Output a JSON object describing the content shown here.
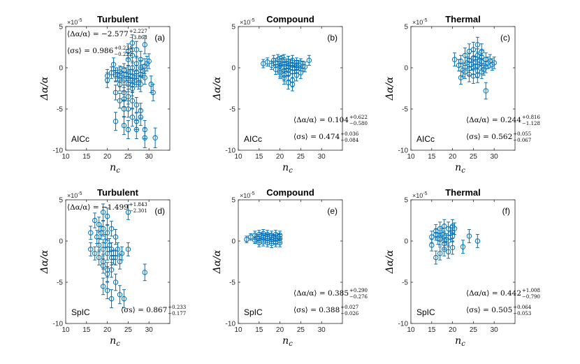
{
  "figure": {
    "exponent_label": "×10",
    "exponent_power": "-5",
    "xlabel": "n_c",
    "ylabel": "Δα/α",
    "marker_color": "#0072BD"
  },
  "chart_data": [
    {
      "type": "scatter",
      "id": "a",
      "title": "Turbulent",
      "panel_label": "(a)",
      "method": "AICc",
      "xlabel": "n_c",
      "ylabel": "Δα/α",
      "xlim": [
        10,
        35
      ],
      "ylim": [
        -10,
        5
      ],
      "xticks": [
        10,
        15,
        20,
        25,
        30
      ],
      "yticks": [
        5,
        0,
        -5,
        -10
      ],
      "ytick_scale": "×10^-5",
      "stats": [
        {
          "name": "⟨Δα/α⟩",
          "value": "−2.577",
          "plus": "+2.227",
          "minus": "−3.863",
          "position": "top"
        },
        {
          "name": "⟨σs⟩",
          "value": "0.986",
          "plus": "+0.234",
          "minus": "−0.222",
          "position": "top"
        }
      ],
      "x": [
        20,
        20,
        21,
        21.5,
        22,
        22,
        22,
        22.5,
        23,
        23,
        23,
        23,
        23.5,
        24,
        24,
        24,
        24,
        24,
        24.5,
        25,
        25,
        25,
        25,
        25,
        25,
        25,
        25.5,
        26,
        26,
        26,
        26,
        26,
        26,
        26,
        26.5,
        27,
        27,
        27,
        27,
        27,
        27,
        27,
        27.5,
        28,
        28,
        28,
        28,
        28,
        28.5,
        29,
        29,
        29,
        29,
        29.5,
        30,
        30.5,
        31,
        31.5,
        22,
        24,
        25,
        26,
        28,
        29
      ],
      "y": [
        -1,
        -1.5,
        -0.6,
        0.4,
        -1,
        -3,
        -6.5,
        -0.8,
        -0.5,
        -2,
        -4,
        -1.5,
        -0.7,
        -0.3,
        -1.5,
        -3,
        -5,
        -7,
        -0.8,
        2,
        1,
        -0.5,
        -2,
        -3.5,
        -5,
        -7.5,
        -1,
        3,
        1.5,
        0,
        -1,
        -2.5,
        -4,
        -6,
        -1.2,
        2.2,
        0.5,
        -0.5,
        -1.5,
        -4.5,
        -6.5,
        -7.5,
        -1.8,
        1,
        0,
        -0.8,
        -2,
        -6,
        -0.4,
        2.8,
        0.2,
        -7.5,
        -8.5,
        0.5,
        0.8,
        -2,
        -3,
        -8.5,
        -0.8,
        -3.8,
        -1.3,
        -2.1,
        -5.2,
        -1.2
      ],
      "yerr": [
        0.8,
        0.9,
        0.7,
        0.8,
        0.7,
        0.9,
        1.1,
        0.8,
        0.7,
        0.8,
        0.9,
        0.8,
        0.8,
        0.8,
        0.9,
        0.9,
        1.0,
        1.1,
        0.8,
        0.9,
        0.8,
        0.8,
        0.9,
        0.9,
        1.0,
        1.1,
        0.8,
        1.0,
        0.9,
        0.8,
        0.8,
        0.9,
        1.0,
        1.1,
        0.8,
        1.0,
        0.9,
        0.8,
        0.8,
        0.9,
        1.0,
        1.1,
        0.8,
        1.0,
        0.9,
        0.8,
        0.9,
        1.0,
        0.8,
        1.1,
        0.9,
        1.1,
        1.2,
        0.9,
        0.9,
        1.0,
        1.0,
        1.2,
        0.8,
        0.9,
        0.8,
        0.8,
        0.9,
        0.8
      ]
    },
    {
      "type": "scatter",
      "id": "b",
      "title": "Compound",
      "panel_label": "(b)",
      "method": "AICc",
      "xlabel": "n_c",
      "ylabel": "Δα/α",
      "xlim": [
        10,
        35
      ],
      "ylim": [
        -10,
        5
      ],
      "xticks": [
        10,
        15,
        20,
        25,
        30
      ],
      "yticks": [
        5,
        0,
        -5,
        -10
      ],
      "ytick_scale": "×10^-5",
      "stats": [
        {
          "name": "⟨Δα/α⟩",
          "value": "0.104",
          "plus": "+0.622",
          "minus": "−0.580",
          "position": "bottom"
        },
        {
          "name": "⟨σs⟩",
          "value": "0.474",
          "plus": "+0.036",
          "minus": "−0.084",
          "position": "bottom"
        }
      ],
      "x": [
        16,
        17,
        18,
        18.5,
        19,
        19,
        19.5,
        20,
        20,
        20,
        20.5,
        21,
        21,
        21,
        21,
        21.5,
        22,
        22,
        22,
        22,
        22.5,
        23,
        23,
        23,
        23,
        23.5,
        24,
        24,
        24,
        24.5,
        25,
        25,
        25.5,
        26,
        27,
        20,
        21,
        22,
        23,
        24
      ],
      "y": [
        0.5,
        0.7,
        0.3,
        0.9,
        0.6,
        -0.2,
        1,
        0.8,
        0.2,
        -0.6,
        0.9,
        1,
        0.4,
        -0.3,
        -1.2,
        0.1,
        0.8,
        0.2,
        -0.8,
        -1.8,
        0.4,
        0.9,
        0.3,
        -0.5,
        -1.5,
        -0.1,
        0.6,
        0,
        -0.9,
        0.3,
        0.5,
        -0.6,
        0.2,
        0.1,
        0.9,
        -0.4,
        -0.9,
        -0.3,
        -2,
        0.3
      ],
      "yerr": [
        0.5,
        0.5,
        0.5,
        0.6,
        0.5,
        0.6,
        0.6,
        0.6,
        0.6,
        0.7,
        0.6,
        0.6,
        0.6,
        0.7,
        0.8,
        0.6,
        0.6,
        0.6,
        0.7,
        0.8,
        0.6,
        0.6,
        0.6,
        0.7,
        0.8,
        0.6,
        0.6,
        0.6,
        0.7,
        0.6,
        0.6,
        0.7,
        0.6,
        0.6,
        0.6,
        0.7,
        0.7,
        0.6,
        0.8,
        0.6
      ]
    },
    {
      "type": "scatter",
      "id": "c",
      "title": "Thermal",
      "panel_label": "(c)",
      "method": "AICc",
      "xlabel": "n_c",
      "ylabel": "Δα/α",
      "xlim": [
        10,
        35
      ],
      "ylim": [
        -10,
        5
      ],
      "xticks": [
        10,
        15,
        20,
        25,
        30
      ],
      "yticks": [
        5,
        0,
        -5,
        -10
      ],
      "ytick_scale": "×10^-5",
      "stats": [
        {
          "name": "⟨Δα/α⟩",
          "value": "0.244",
          "plus": "+0.816",
          "minus": "−1.128",
          "position": "bottom"
        },
        {
          "name": "⟨σs⟩",
          "value": "0.562",
          "plus": "+0.055",
          "minus": "−0.067",
          "position": "bottom"
        }
      ],
      "x": [
        20.5,
        21.5,
        22,
        22.5,
        23,
        23,
        23.5,
        24,
        24,
        24,
        24.5,
        25,
        25,
        25,
        25,
        25.5,
        26,
        26,
        26,
        26,
        26.5,
        27,
        27,
        27,
        27.5,
        28,
        28,
        28,
        28.5,
        29,
        29.5,
        30,
        22,
        24,
        26,
        27
      ],
      "y": [
        1,
        0.3,
        0.8,
        -0.3,
        1.5,
        -0.5,
        0.6,
        2,
        0.9,
        -0.8,
        0.4,
        2.2,
        1.2,
        0,
        -1,
        0.7,
        2.8,
        1.5,
        0.2,
        -0.9,
        0.9,
        2,
        0.7,
        -0.5,
        -0.2,
        1,
        0.1,
        -2.8,
        0.6,
        0.8,
        0.4,
        0.6,
        -1.2,
        -0.1,
        -0.4,
        1.3
      ],
      "yerr": [
        0.8,
        0.7,
        0.7,
        0.8,
        0.9,
        0.8,
        0.7,
        0.9,
        0.8,
        0.9,
        0.7,
        0.9,
        0.8,
        0.8,
        0.9,
        0.7,
        0.9,
        0.8,
        0.8,
        0.9,
        0.7,
        0.9,
        0.8,
        0.8,
        0.7,
        0.8,
        0.7,
        1.0,
        0.7,
        0.8,
        0.7,
        0.7,
        0.8,
        0.8,
        0.8,
        0.8
      ]
    },
    {
      "type": "scatter",
      "id": "d",
      "title": "Turbulent",
      "panel_label": "(d)",
      "method": "SpIC",
      "xlabel": "n_c",
      "ylabel": "Δα/α",
      "xlim": [
        10,
        35
      ],
      "ylim": [
        -10,
        5
      ],
      "xticks": [
        10,
        15,
        20,
        25,
        30
      ],
      "yticks": [
        5,
        0,
        -5,
        -10
      ],
      "ytick_scale": "×10^-5",
      "stats": [
        {
          "name": "⟨Δα/α⟩",
          "value": "−1.499",
          "plus": "+1.843",
          "minus": "−2.301",
          "position": "top"
        },
        {
          "name": "⟨σs⟩",
          "value": "0.867",
          "plus": "+0.233",
          "minus": "−0.177",
          "position": "bottom"
        }
      ],
      "x": [
        16,
        16,
        17,
        17,
        17.5,
        18,
        18,
        18,
        18.5,
        19,
        19,
        19,
        19,
        19,
        19.5,
        20,
        20,
        20,
        20,
        20,
        20.5,
        21,
        21,
        21,
        21,
        21.5,
        22,
        22,
        22,
        22.5,
        23,
        23,
        23.5,
        24,
        25,
        25,
        29,
        19,
        20,
        21
      ],
      "y": [
        1,
        -1,
        2.5,
        -1.5,
        0.5,
        2,
        -0.5,
        -2,
        1,
        3.5,
        1.5,
        -1,
        -3,
        -5.5,
        0,
        3,
        1,
        -1.5,
        -3.5,
        -6,
        -0.5,
        1.5,
        -1,
        -3.5,
        -7,
        -2,
        0.5,
        -2,
        -5,
        -1,
        -2.5,
        -6.5,
        -1.5,
        -7,
        3.5,
        -1,
        -3.8,
        -2.5,
        -4,
        -2
      ],
      "yerr": [
        0.8,
        0.8,
        0.9,
        0.8,
        0.8,
        0.9,
        0.8,
        0.9,
        0.8,
        1.0,
        0.9,
        0.8,
        0.9,
        1.0,
        0.8,
        1.0,
        0.9,
        0.8,
        0.9,
        1.0,
        0.8,
        0.9,
        0.8,
        0.9,
        1.1,
        0.8,
        0.9,
        0.9,
        1.0,
        0.8,
        0.9,
        1.1,
        0.8,
        1.1,
        0.9,
        0.8,
        1.0,
        0.9,
        0.9,
        0.9
      ]
    },
    {
      "type": "scatter",
      "id": "e",
      "title": "Compound",
      "panel_label": "(e)",
      "method": "SpIC",
      "xlabel": "n_c",
      "ylabel": "Δα/α",
      "xlim": [
        10,
        35
      ],
      "ylim": [
        -10,
        5
      ],
      "xticks": [
        10,
        15,
        20,
        25,
        30
      ],
      "yticks": [
        5,
        0,
        -5,
        -10
      ],
      "ytick_scale": "×10^-5",
      "stats": [
        {
          "name": "⟨Δα/α⟩",
          "value": "0.385",
          "plus": "+0.290",
          "minus": "−0.276",
          "position": "bottom"
        },
        {
          "name": "⟨σs⟩",
          "value": "0.388",
          "plus": "+0.027",
          "minus": "−0.026",
          "position": "bottom"
        }
      ],
      "x": [
        12,
        13,
        14,
        14,
        14.5,
        15,
        15,
        15,
        15.5,
        16,
        16,
        16,
        16.5,
        17,
        17,
        17,
        17.5,
        18,
        18,
        18,
        18.5,
        19,
        19,
        19,
        19.5,
        20,
        20,
        20
      ],
      "y": [
        0.2,
        0.5,
        0.1,
        0.7,
        0.4,
        0.8,
        0.3,
        -0.2,
        0.6,
        0.9,
        0.4,
        -0.1,
        0.5,
        0.8,
        0.3,
        -0.2,
        0.5,
        0.7,
        0.2,
        -0.3,
        0.4,
        0.8,
        0.2,
        -0.2,
        0.5,
        0.7,
        0.3,
        -0.2
      ],
      "yerr": [
        0.4,
        0.4,
        0.4,
        0.5,
        0.4,
        0.5,
        0.5,
        0.5,
        0.4,
        0.5,
        0.5,
        0.5,
        0.4,
        0.5,
        0.5,
        0.5,
        0.4,
        0.5,
        0.5,
        0.5,
        0.4,
        0.5,
        0.5,
        0.5,
        0.4,
        0.5,
        0.5,
        0.5
      ]
    },
    {
      "type": "scatter",
      "id": "f",
      "title": "Thermal",
      "panel_label": "(f)",
      "method": "SpIC",
      "xlabel": "n_c",
      "ylabel": "Δα/α",
      "xlim": [
        10,
        35
      ],
      "ylim": [
        -10,
        5
      ],
      "xticks": [
        10,
        15,
        20,
        25,
        30
      ],
      "yticks": [
        5,
        0,
        -5,
        -10
      ],
      "ytick_scale": "×10^-5",
      "stats": [
        {
          "name": "⟨Δα/α⟩",
          "value": "0.442",
          "plus": "+1.008",
          "minus": "−0.790",
          "position": "bottom"
        },
        {
          "name": "⟨σs⟩",
          "value": "0.505",
          "plus": "+0.064",
          "minus": "−0.053",
          "position": "bottom"
        }
      ],
      "x": [
        15,
        15,
        16,
        16,
        16.5,
        17,
        17,
        17,
        17.5,
        18,
        18,
        18,
        18.5,
        19,
        19,
        19,
        19.5,
        20,
        20,
        20,
        20.5,
        22.5,
        24,
        26,
        16,
        18,
        20
      ],
      "y": [
        0.5,
        -0.5,
        1.2,
        -2,
        0.3,
        1.5,
        0.2,
        -1.5,
        0.8,
        1.8,
        0.5,
        -1,
        0.2,
        1.5,
        0,
        -1.3,
        0.9,
        1.8,
        0.6,
        -0.8,
        1.5,
        -0.7,
        0.6,
        0,
        0.8,
        -0.3,
        1.1
      ],
      "yerr": [
        0.7,
        0.7,
        0.8,
        0.8,
        0.7,
        0.8,
        0.7,
        0.8,
        0.7,
        0.8,
        0.7,
        0.8,
        0.7,
        0.8,
        0.7,
        0.8,
        0.7,
        0.8,
        0.7,
        0.8,
        0.7,
        0.8,
        0.8,
        0.8,
        0.7,
        0.7,
        0.8
      ]
    }
  ]
}
